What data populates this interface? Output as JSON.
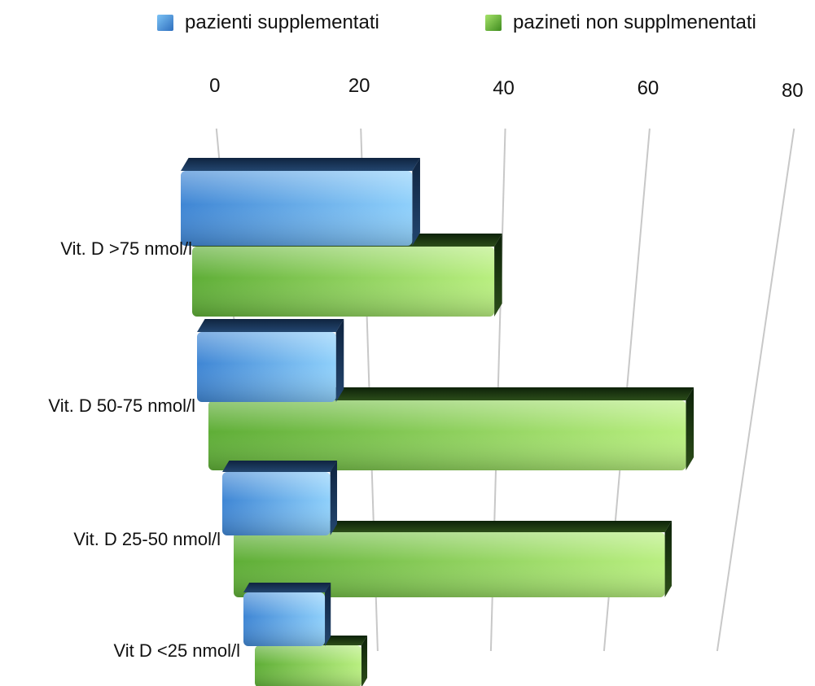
{
  "chart_data": {
    "type": "bar",
    "orientation": "horizontal",
    "categories": [
      "Vit. D >75 nmol/l",
      "Vit. D 50-75 nmol/l",
      "Vit. D 25-50 nmol/l",
      "Vit D <25 nmol/l"
    ],
    "series": [
      {
        "name": "pazienti supplementati",
        "values": [
          27,
          15,
          13,
          11
        ],
        "color": "#4a90d9"
      },
      {
        "name": "pazineti non supplmenentati",
        "values": [
          39,
          70,
          69,
          17
        ],
        "color": "#6ab83c"
      }
    ],
    "xticks": [
      0,
      20,
      40,
      60,
      80
    ],
    "xlim": [
      0,
      80
    ],
    "grid": true,
    "legend_position": "top",
    "style": "3d-perspective"
  }
}
